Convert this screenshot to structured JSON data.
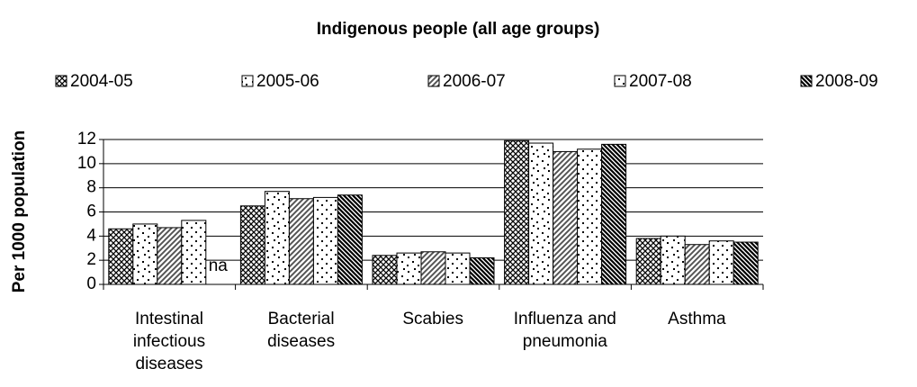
{
  "chart_data": {
    "type": "bar",
    "title": "Indigenous people (all age groups)",
    "y_label": "Per 1000 population",
    "categories": [
      "Intestinal\ninfectious\ndiseases",
      "Bacterial\ndiseases",
      "Scabies",
      "Influenza and\npneumonia",
      "Asthma"
    ],
    "series": [
      {
        "name": "2004-05",
        "pattern": "crosshatch",
        "color": "#000000",
        "values": [
          4.6,
          6.5,
          2.4,
          11.9,
          3.8
        ]
      },
      {
        "name": "2005-06",
        "pattern": "scattered-dots",
        "color": "#000000",
        "values": [
          5.0,
          7.7,
          2.6,
          11.7,
          4.0
        ]
      },
      {
        "name": "2006-07",
        "pattern": "diagonal",
        "color": "#000000",
        "values": [
          4.7,
          7.1,
          2.7,
          11.0,
          3.3
        ]
      },
      {
        "name": "2007-08",
        "pattern": "dots",
        "color": "#000000",
        "values": [
          5.3,
          7.2,
          2.6,
          11.2,
          3.6
        ]
      },
      {
        "name": "2008-09",
        "pattern": "dark-diagonal",
        "color": "#000000",
        "values": [
          null,
          7.4,
          2.2,
          11.6,
          3.5
        ],
        "value_labels": [
          "na",
          null,
          null,
          null,
          null
        ]
      }
    ],
    "ylim": [
      0,
      12
    ],
    "yticks": [
      0,
      2,
      4,
      6,
      8,
      10,
      12
    ],
    "grid": true,
    "legend": "top"
  }
}
